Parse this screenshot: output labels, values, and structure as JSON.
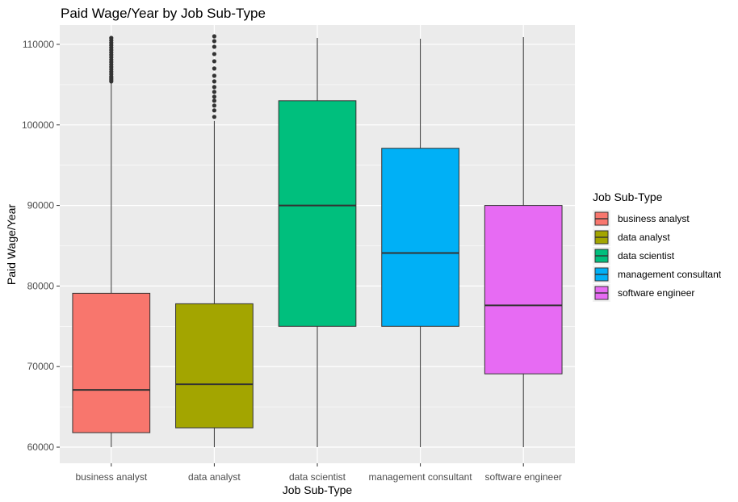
{
  "chart_data": {
    "type": "boxplot",
    "title": "Paid Wage/Year by Job Sub-Type",
    "xlabel": "Job Sub-Type",
    "ylabel": "Paid Wage/Year",
    "ylim": [
      58000,
      112400
    ],
    "yticks": [
      60000,
      70000,
      80000,
      90000,
      100000,
      110000
    ],
    "y_tick_labels": [
      "60000",
      "70000",
      "80000",
      "90000",
      "100000",
      "110000"
    ],
    "categories": [
      "business analyst",
      "data analyst",
      "data scientist",
      "management consultant",
      "software engineer"
    ],
    "colors": [
      "#F8766D",
      "#A3A500",
      "#00BF7D",
      "#00B0F6",
      "#E76BF3"
    ],
    "boxes": [
      {
        "whisker_low": 60000,
        "q1": 61800,
        "median": 67100,
        "q3": 79100,
        "whisker_high": 105200,
        "outliers": [
          105400,
          105600,
          105800,
          106000,
          106300,
          106600,
          106900,
          107200,
          107500,
          107800,
          108100,
          108400,
          108700,
          109000,
          109300,
          109600,
          109900,
          110200,
          110500,
          110800
        ]
      },
      {
        "whisker_low": 60000,
        "q1": 62400,
        "median": 67800,
        "q3": 77800,
        "whisker_high": 100500,
        "outliers": [
          101000,
          101800,
          102400,
          103000,
          103500,
          104100,
          104700,
          105400,
          106100,
          107000,
          107900,
          108800,
          109700,
          110400,
          111000
        ]
      },
      {
        "whisker_low": 60000,
        "q1": 75000,
        "median": 90000,
        "q3": 103000,
        "whisker_high": 110800,
        "outliers": []
      },
      {
        "whisker_low": 60000,
        "q1": 75000,
        "median": 84100,
        "q3": 97100,
        "whisker_high": 110700,
        "outliers": []
      },
      {
        "whisker_low": 60000,
        "q1": 69100,
        "median": 77600,
        "q3": 90000,
        "whisker_high": 110900,
        "outliers": []
      }
    ],
    "legend": {
      "title": "Job Sub-Type",
      "position": "right",
      "entries": [
        "business analyst",
        "data analyst",
        "data scientist",
        "management consultant",
        "software engineer"
      ]
    },
    "grid": true,
    "panel_background": "#EBEBEB",
    "grid_color": "#FFFFFF",
    "outline_color": "#333333"
  }
}
